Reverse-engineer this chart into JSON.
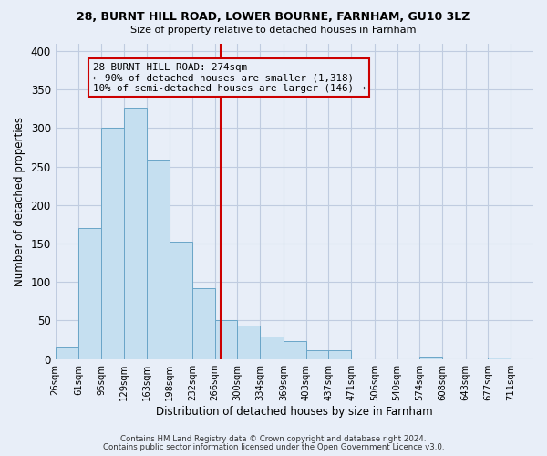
{
  "title1": "28, BURNT HILL ROAD, LOWER BOURNE, FARNHAM, GU10 3LZ",
  "title2": "Size of property relative to detached houses in Farnham",
  "xlabel": "Distribution of detached houses by size in Farnham",
  "ylabel": "Number of detached properties",
  "bin_labels": [
    "26sqm",
    "61sqm",
    "95sqm",
    "129sqm",
    "163sqm",
    "198sqm",
    "232sqm",
    "266sqm",
    "300sqm",
    "334sqm",
    "369sqm",
    "403sqm",
    "437sqm",
    "471sqm",
    "506sqm",
    "540sqm",
    "574sqm",
    "608sqm",
    "643sqm",
    "677sqm",
    "711sqm"
  ],
  "bar_values": [
    15,
    170,
    300,
    327,
    259,
    153,
    92,
    50,
    43,
    29,
    23,
    12,
    11,
    0,
    0,
    0,
    3,
    0,
    0,
    2
  ],
  "bar_left_edges": [
    26,
    61,
    95,
    129,
    163,
    198,
    232,
    266,
    300,
    334,
    369,
    403,
    437,
    471,
    506,
    540,
    574,
    608,
    643,
    677
  ],
  "bar_widths": [
    35,
    34,
    34,
    34,
    35,
    34,
    34,
    34,
    34,
    35,
    34,
    34,
    34,
    35,
    34,
    34,
    34,
    35,
    34,
    34
  ],
  "vline_x": 274,
  "vline_color": "#cc0000",
  "bar_fill": "#c5dff0",
  "bar_edge": "#6aa5c8",
  "annotation_line1": "28 BURNT HILL ROAD: 274sqm",
  "annotation_line2": "← 90% of detached houses are smaller (1,318)",
  "annotation_line3": "10% of semi-detached houses are larger (146) →",
  "annotation_box_edge": "#cc0000",
  "ylim": [
    0,
    410
  ],
  "yticks": [
    0,
    50,
    100,
    150,
    200,
    250,
    300,
    350,
    400
  ],
  "footer1": "Contains HM Land Registry data © Crown copyright and database right 2024.",
  "footer2": "Contains public sector information licensed under the Open Government Licence v3.0.",
  "background_color": "#e8eef8",
  "plot_background": "#e8eef8",
  "grid_color": "#c0cce0"
}
